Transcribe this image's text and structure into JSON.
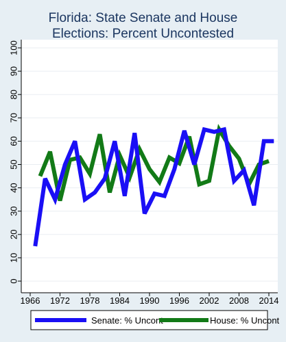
{
  "chart_data": {
    "type": "line",
    "title": "Florida: State Senate and House",
    "subtitle": "Elections: Percent Uncontested",
    "xlabel": "",
    "ylabel": "",
    "xlim": [
      1966,
      2014
    ],
    "ylim": [
      0,
      100
    ],
    "x_ticks": [
      "1966",
      "1972",
      "1978",
      "1984",
      "1990",
      "1996",
      "2002",
      "2008",
      "2014"
    ],
    "y_ticks": [
      "0",
      "10",
      "20",
      "30",
      "40",
      "50",
      "60",
      "70",
      "80",
      "90",
      "100"
    ],
    "grid": true,
    "legend_position": "bottom",
    "series": [
      {
        "name": "Senate: % Uncont",
        "color": "#1a0ff5",
        "x": [
          1967,
          1969,
          1971,
          1973,
          1975,
          1977,
          1979,
          1981,
          1983,
          1985,
          1987,
          1989,
          1991,
          1993,
          1995,
          1997,
          1999,
          2001,
          2003,
          2005,
          2007,
          2009,
          2011,
          2013,
          2015
        ],
        "values": [
          15,
          44,
          35,
          50,
          60,
          35,
          38,
          44,
          60,
          36.5,
          63.5,
          29,
          37.5,
          36.5,
          48,
          64.5,
          50,
          65,
          64,
          65,
          43,
          47.5,
          32.5,
          60,
          60
        ]
      },
      {
        "name": "House: % Uncont",
        "color": "#127a17",
        "x": [
          1968,
          1970,
          1972,
          1974,
          1976,
          1978,
          1980,
          1982,
          1984,
          1986,
          1988,
          1990,
          1992,
          1994,
          1996,
          1998,
          2000,
          2002,
          2004,
          2006,
          2008,
          2010,
          2012,
          2014
        ],
        "values": [
          45,
          55.5,
          34.5,
          52,
          53,
          46,
          63,
          38,
          54,
          44.5,
          56.5,
          48,
          42.5,
          53,
          50.5,
          62,
          41.5,
          43,
          65,
          58,
          52.5,
          41.5,
          50,
          51.5
        ]
      }
    ]
  }
}
